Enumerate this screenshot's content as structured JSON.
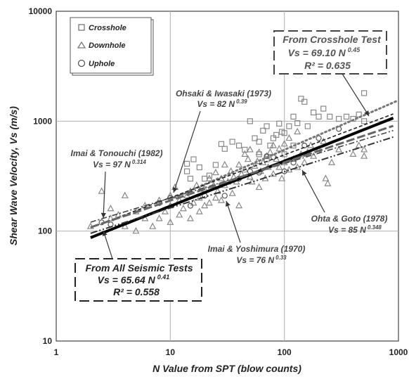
{
  "chart_data": {
    "type": "scatter",
    "xlabel": "N Value from SPT (blow counts)",
    "ylabel": "Shear Wave Velocity, Vs (m/s)",
    "x_scale": "log",
    "y_scale": "log",
    "xlim": [
      1,
      1000
    ],
    "ylim": [
      10,
      10000
    ],
    "x_ticks": [
      "1",
      "10",
      "100",
      "1000"
    ],
    "y_ticks": [
      "10",
      "100",
      "1000",
      "10000"
    ],
    "grid": true,
    "legend_position": "top-left",
    "legend": [
      {
        "label": "Crosshole",
        "marker": "square"
      },
      {
        "label": "Downhole",
        "marker": "triangle"
      },
      {
        "label": "Uphole",
        "marker": "circle"
      }
    ],
    "series": [
      {
        "name": "Crosshole",
        "marker": "square",
        "points": [
          [
            14,
            410
          ],
          [
            14,
            350
          ],
          [
            15,
            300
          ],
          [
            16,
            450
          ],
          [
            18,
            380
          ],
          [
            20,
            300
          ],
          [
            22,
            320
          ],
          [
            25,
            400
          ],
          [
            28,
            620
          ],
          [
            30,
            560
          ],
          [
            35,
            650
          ],
          [
            40,
            600
          ],
          [
            45,
            550
          ],
          [
            50,
            1000
          ],
          [
            55,
            700
          ],
          [
            60,
            650
          ],
          [
            65,
            820
          ],
          [
            70,
            900
          ],
          [
            75,
            600
          ],
          [
            80,
            700
          ],
          [
            85,
            750
          ],
          [
            90,
            950
          ],
          [
            95,
            800
          ],
          [
            100,
            780
          ],
          [
            110,
            900
          ],
          [
            120,
            1100
          ],
          [
            130,
            960
          ],
          [
            140,
            1600
          ],
          [
            150,
            1500
          ],
          [
            160,
            900
          ],
          [
            180,
            1200
          ],
          [
            200,
            1100
          ],
          [
            220,
            1300
          ],
          [
            250,
            1100
          ],
          [
            300,
            1050
          ],
          [
            350,
            1100
          ],
          [
            400,
            1050
          ],
          [
            450,
            1150
          ],
          [
            500,
            1800
          ],
          [
            500,
            1000
          ],
          [
            100,
            500
          ],
          [
            120,
            600
          ],
          [
            70,
            450
          ],
          [
            60,
            500
          ]
        ]
      },
      {
        "name": "Downhole",
        "marker": "triangle",
        "points": [
          [
            2,
            110
          ],
          [
            2.5,
            230
          ],
          [
            3,
            130
          ],
          [
            3,
            160
          ],
          [
            3.5,
            140
          ],
          [
            4,
            210
          ],
          [
            4,
            110
          ],
          [
            5,
            150
          ],
          [
            5,
            100
          ],
          [
            6,
            170
          ],
          [
            6,
            130
          ],
          [
            7,
            110
          ],
          [
            8,
            130
          ],
          [
            8,
            190
          ],
          [
            9,
            150
          ],
          [
            10,
            120
          ],
          [
            10,
            170
          ],
          [
            10,
            210
          ],
          [
            11,
            250
          ],
          [
            12,
            140
          ],
          [
            12,
            190
          ],
          [
            13,
            160
          ],
          [
            14,
            210
          ],
          [
            15,
            230
          ],
          [
            15,
            130
          ],
          [
            16,
            180
          ],
          [
            17,
            260
          ],
          [
            18,
            200
          ],
          [
            18,
            150
          ],
          [
            19,
            250
          ],
          [
            20,
            240
          ],
          [
            20,
            170
          ],
          [
            22,
            180
          ],
          [
            22,
            300
          ],
          [
            24,
            260
          ],
          [
            25,
            200
          ],
          [
            25,
            340
          ],
          [
            26,
            230
          ],
          [
            28,
            300
          ],
          [
            28,
            190
          ],
          [
            30,
            400
          ],
          [
            30,
            260
          ],
          [
            32,
            280
          ],
          [
            34,
            350
          ],
          [
            35,
            220
          ],
          [
            36,
            310
          ],
          [
            38,
            280
          ],
          [
            40,
            400
          ],
          [
            40,
            170
          ],
          [
            42,
            330
          ],
          [
            45,
            360
          ],
          [
            45,
            500
          ],
          [
            48,
            450
          ],
          [
            50,
            310
          ],
          [
            50,
            550
          ],
          [
            52,
            280
          ],
          [
            55,
            390
          ],
          [
            58,
            430
          ],
          [
            60,
            250
          ],
          [
            60,
            520
          ],
          [
            62,
            350
          ],
          [
            65,
            420
          ],
          [
            68,
            300
          ],
          [
            70,
            480
          ],
          [
            72,
            380
          ],
          [
            75,
            520
          ],
          [
            80,
            330
          ],
          [
            80,
            600
          ],
          [
            85,
            450
          ],
          [
            90,
            380
          ],
          [
            90,
            560
          ],
          [
            95,
            300
          ],
          [
            100,
            420
          ],
          [
            100,
            620
          ],
          [
            110,
            360
          ],
          [
            110,
            700
          ],
          [
            120,
            450
          ],
          [
            130,
            380
          ],
          [
            130,
            800
          ],
          [
            140,
            500
          ],
          [
            150,
            420
          ],
          [
            160,
            520
          ],
          [
            170,
            600
          ],
          [
            180,
            480
          ],
          [
            200,
            550
          ],
          [
            220,
            650
          ],
          [
            230,
            300
          ],
          [
            240,
            270
          ],
          [
            260,
            420
          ],
          [
            300,
            550
          ],
          [
            400,
            500
          ],
          [
            450,
            600
          ],
          [
            500,
            480
          ],
          [
            500,
            550
          ]
        ]
      },
      {
        "name": "Uphole",
        "marker": "circle",
        "points": [
          [
            2.5,
            120
          ],
          [
            3,
            115
          ],
          [
            8,
            180
          ],
          [
            10,
            200
          ],
          [
            15,
            170
          ],
          [
            20,
            210
          ],
          [
            30,
            210
          ],
          [
            40,
            300
          ],
          [
            50,
            350
          ],
          [
            60,
            340
          ],
          [
            70,
            480
          ],
          [
            80,
            470
          ],
          [
            100,
            350
          ],
          [
            120,
            420
          ],
          [
            150,
            600
          ],
          [
            200,
            700
          ],
          [
            300,
            850
          ]
        ]
      }
    ],
    "fit_lines": [
      {
        "name": "From All Seismic Tests",
        "a": 65.64,
        "b": 0.41,
        "x_range": [
          2,
          900
        ],
        "style": "solid-thick"
      },
      {
        "name": "From Crosshole Test",
        "a": 69.1,
        "b": 0.45,
        "x_range": [
          10,
          1000
        ],
        "style": "dotted"
      },
      {
        "name": "Ohsaki & Iwasaki (1973)",
        "a": 82,
        "b": 0.39,
        "x_range": [
          2,
          900
        ],
        "style": "dashed"
      },
      {
        "name": "Imai & Tonouchi (1982)",
        "a": 97,
        "b": 0.314,
        "x_range": [
          2,
          900
        ],
        "style": "dash-dot"
      },
      {
        "name": "Imai & Yoshimura (1970)",
        "a": 76,
        "b": 0.33,
        "x_range": [
          2,
          900
        ],
        "style": "dash-dot-dot"
      },
      {
        "name": "Ohta & Goto (1978)",
        "a": 85,
        "b": 0.348,
        "x_range": [
          2,
          900
        ],
        "style": "long-dash"
      }
    ],
    "annotations": {
      "crosshole_box": {
        "title": "From Crosshole Test",
        "eq_lhs": "Vs = 69.10 N",
        "eq_exp": "0.45",
        "r2": "R² = 0.635"
      },
      "all_box": {
        "title": "From All Seismic Tests",
        "eq_lhs": "Vs = 65.64 N",
        "eq_exp": "0.41",
        "r2": "R² = 0.558"
      },
      "ohsaki": {
        "title": "Ohsaki & Iwasaki (1973)",
        "eq_lhs": "Vs = 82 N",
        "eq_exp": "0.39"
      },
      "imai_t": {
        "title": "Imai & Tonouchi (1982)",
        "eq_lhs": "Vs = 97 N",
        "eq_exp": "0.314"
      },
      "imai_y": {
        "title": "Imai & Yoshimura (1970)",
        "eq_lhs": "Vs = 76 N",
        "eq_exp": "0.33"
      },
      "ohta": {
        "title": "Ohta & Goto (1978)",
        "eq_lhs": "Vs = 85 N",
        "eq_exp": "0.348"
      }
    }
  }
}
